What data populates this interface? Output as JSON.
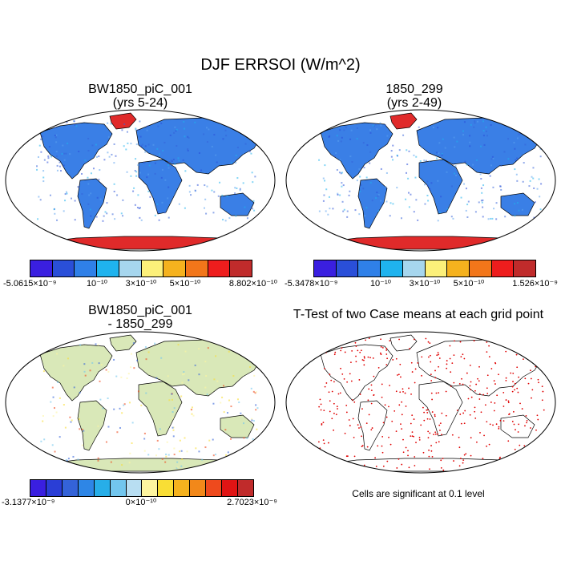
{
  "figure": {
    "title": "DJF ERRSOI (W/m^2)"
  },
  "panels": [
    {
      "title_line1": "BW1850_piC_001",
      "title_line2": "(yrs 5-24)",
      "colorbar": {
        "colors": [
          "#3a1fe0",
          "#2a4fd8",
          "#2f80e8",
          "#1fb3ee",
          "#a6d6ee",
          "#fcf07a",
          "#f5b21e",
          "#f2761a",
          "#ee1d1d",
          "#c02b2b"
        ],
        "labels": [
          "-5.0615×10⁻⁹",
          "10⁻¹⁰",
          "3×10⁻¹⁰",
          "5×10⁻¹⁰",
          "8.802×10⁻¹⁰"
        ]
      }
    },
    {
      "title_line1": "1850_299",
      "title_line2": "(yrs 2-49)",
      "colorbar": {
        "colors": [
          "#3a1fe0",
          "#2a4fd8",
          "#2f80e8",
          "#1fb3ee",
          "#a6d6ee",
          "#fcf07a",
          "#f5b21e",
          "#f2761a",
          "#ee1d1d",
          "#c02b2b"
        ],
        "labels": [
          "-5.3478×10⁻⁹",
          "10⁻¹⁰",
          "3×10⁻¹⁰",
          "5×10⁻¹⁰",
          "1.526×10⁻⁹"
        ]
      }
    },
    {
      "title_line1": "BW1850_piC_001",
      "title_line2": "- 1850_299",
      "colorbar": {
        "colors": [
          "#3a1fe0",
          "#2a3ed6",
          "#3463d8",
          "#2e86e6",
          "#27aee8",
          "#72c6ee",
          "#b8def2",
          "#fdf5a0",
          "#f9de35",
          "#f5b21e",
          "#f2881a",
          "#ee4a1d",
          "#e01414",
          "#c02b2b"
        ],
        "labels": [
          "-3.1377×10⁻⁹",
          "0×10⁻¹⁰",
          "2.7023×10⁻⁹"
        ]
      }
    },
    {
      "title_line1": "T-Test of two Case means at each grid point",
      "note": "Cells are significant at 0.1 level"
    }
  ],
  "map_colors": {
    "panel1_land": "#3a7fe6",
    "panel2_land": "#3a7fe6",
    "greenland": "#e02a2a",
    "antarctica": "#e02a2a",
    "diff_land": "#d9e8b8",
    "ttest_dots": "#e00000"
  }
}
